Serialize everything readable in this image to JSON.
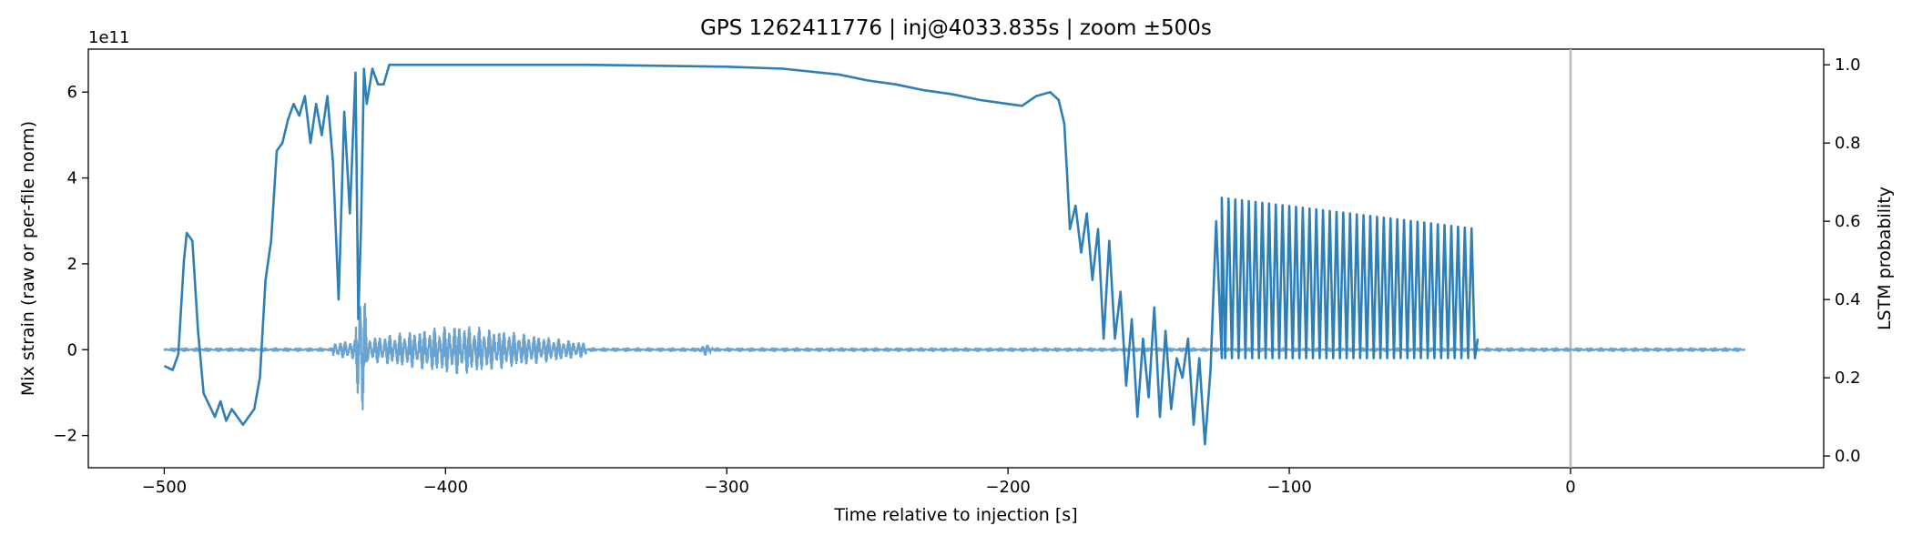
{
  "chart_data": {
    "type": "line",
    "title": "GPS 1262411776 | inj@4033.835s | zoom ±500s",
    "xlabel": "Time relative to injection [s]",
    "ylabel_left": "Mix strain (raw or per-file norm)",
    "ylabel_right": "LSTM probability",
    "left_offset_label": "1e11",
    "xlim": [
      -527,
      90
    ],
    "ylim_left": [
      -2.75,
      7.0
    ],
    "ylim_right": [
      -0.03,
      1.04
    ],
    "x_ticks": [
      -500,
      -400,
      -300,
      -200,
      -100,
      0
    ],
    "x_tick_labels": [
      "−500",
      "−400",
      "−300",
      "−200",
      "−100",
      "0"
    ],
    "left_ticks": [
      -2,
      0,
      2,
      4,
      6
    ],
    "left_tick_labels": [
      "−2",
      "0",
      "2",
      "4",
      "6"
    ],
    "right_ticks": [
      0.0,
      0.2,
      0.4,
      0.6,
      0.8,
      1.0
    ],
    "right_tick_labels": [
      "0.0",
      "0.2",
      "0.4",
      "0.6",
      "0.8",
      "1.0"
    ],
    "vline_x": 0,
    "vline_color": "#bbbbbb",
    "strain_color": "#6aa3cf",
    "prob_color": "#2f7fb7",
    "strain_series": {
      "axis": "left",
      "units": "1e11",
      "x_range": [
        -500,
        62
      ],
      "baseline": 0.0,
      "bursts": [
        {
          "x": [
            -440,
            -350
          ],
          "amplitude": 0.6,
          "note": "oscillatory noise"
        },
        {
          "x": [
            -432,
            -428
          ],
          "amplitude": 2.2
        },
        {
          "x": [
            -310,
            -305
          ],
          "amplitude": 0.15
        }
      ]
    },
    "prob_series": {
      "axis": "right",
      "x_range": [
        -500,
        -33
      ],
      "x": [
        -500,
        -497,
        -495,
        -493,
        -492,
        -490,
        -488,
        -486,
        -484,
        -482,
        -480,
        -478,
        -476,
        -474,
        -472,
        -470,
        -468,
        -466,
        -464,
        -462,
        -460,
        -458,
        -456,
        -454,
        -452,
        -450,
        -448,
        -446,
        -444,
        -442,
        -440,
        -438,
        -436,
        -434,
        -432,
        -431,
        -430,
        -429,
        -428,
        -426,
        -424,
        -422,
        -420,
        -418,
        -416,
        -414,
        -412,
        -400,
        -350,
        -300,
        -280,
        -260,
        -250,
        -240,
        -230,
        -220,
        -210,
        -200,
        -195,
        -190,
        -185,
        -182,
        -180,
        -179,
        -178,
        -176,
        -174,
        -172,
        -170,
        -168,
        -166,
        -164,
        -162,
        -160,
        -158,
        -156,
        -154,
        -152,
        -150,
        -148,
        -146,
        -144,
        -142,
        -140,
        -138,
        -136,
        -134,
        -132,
        -130,
        -128,
        -126,
        -124
      ],
      "y": [
        0.23,
        0.22,
        0.26,
        0.5,
        0.57,
        0.55,
        0.32,
        0.16,
        0.13,
        0.1,
        0.14,
        0.09,
        0.12,
        0.1,
        0.08,
        0.1,
        0.12,
        0.2,
        0.45,
        0.55,
        0.78,
        0.8,
        0.86,
        0.9,
        0.87,
        0.92,
        0.8,
        0.9,
        0.82,
        0.92,
        0.75,
        0.4,
        0.88,
        0.62,
        0.98,
        0.35,
        0.6,
        0.99,
        0.9,
        0.99,
        0.95,
        0.95,
        1.0,
        1.0,
        1.0,
        1.0,
        1.0,
        1.0,
        1.0,
        0.995,
        0.99,
        0.975,
        0.96,
        0.95,
        0.935,
        0.925,
        0.91,
        0.9,
        0.895,
        0.92,
        0.93,
        0.91,
        0.85,
        0.72,
        0.58,
        0.64,
        0.52,
        0.62,
        0.45,
        0.58,
        0.3,
        0.55,
        0.3,
        0.42,
        0.18,
        0.35,
        0.1,
        0.3,
        0.15,
        0.38,
        0.1,
        0.32,
        0.12,
        0.25,
        0.2,
        0.3,
        0.08,
        0.25,
        0.03,
        0.22,
        0.6,
        0.25
      ],
      "oscillation": {
        "x": [
          -124,
          -33
        ],
        "low": 0.25,
        "high_start": 0.66,
        "high_end": 0.58,
        "period": 2.4
      },
      "end_x": -33,
      "end_y": 0.3
    }
  }
}
